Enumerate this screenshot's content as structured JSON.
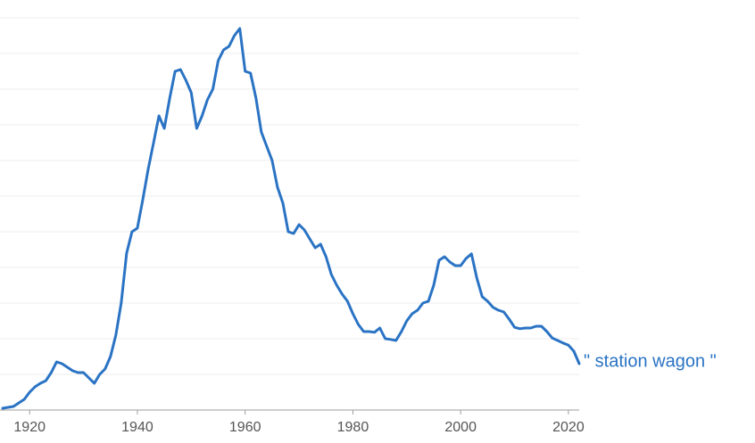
{
  "chart_data": {
    "type": "line",
    "x": [
      1915,
      1917,
      1919,
      1920,
      1921,
      1922,
      1923,
      1924,
      1925,
      1926,
      1927,
      1928,
      1929,
      1930,
      1931,
      1932,
      1933,
      1934,
      1935,
      1936,
      1937,
      1938,
      1939,
      1940,
      1941,
      1942,
      1943,
      1944,
      1945,
      1946,
      1947,
      1948,
      1949,
      1950,
      1951,
      1952,
      1953,
      1954,
      1955,
      1956,
      1957,
      1958,
      1959,
      1960,
      1961,
      1962,
      1963,
      1964,
      1965,
      1966,
      1967,
      1968,
      1969,
      1970,
      1971,
      1972,
      1973,
      1974,
      1975,
      1976,
      1977,
      1978,
      1979,
      1980,
      1981,
      1982,
      1983,
      1984,
      1985,
      1986,
      1987,
      1988,
      1989,
      1990,
      1991,
      1992,
      1993,
      1994,
      1995,
      1996,
      1997,
      1998,
      1999,
      2000,
      2001,
      2002,
      2003,
      2004,
      2005,
      2006,
      2007,
      2008,
      2009,
      2010,
      2011,
      2012,
      2013,
      2014,
      2015,
      2016,
      2017,
      2018,
      2019,
      2020,
      2021,
      2022
    ],
    "series": [
      {
        "name": "\" station wagon \"",
        "color": "#2a73c4",
        "values": [
          0.05,
          0.1,
          0.3,
          0.5,
          0.65,
          0.75,
          0.82,
          1.05,
          1.35,
          1.3,
          1.2,
          1.1,
          1.05,
          1.05,
          0.9,
          0.75,
          1.0,
          1.15,
          1.5,
          2.1,
          3.0,
          4.4,
          5.0,
          5.1,
          5.9,
          6.75,
          7.5,
          8.25,
          7.9,
          8.75,
          9.5,
          9.55,
          9.25,
          8.9,
          7.9,
          8.25,
          8.7,
          9.0,
          9.8,
          10.1,
          10.2,
          10.5,
          10.7,
          9.5,
          9.45,
          8.75,
          7.8,
          7.4,
          7.0,
          6.25,
          5.8,
          5.0,
          4.95,
          5.2,
          5.05,
          4.8,
          4.55,
          4.65,
          4.3,
          3.8,
          3.5,
          3.25,
          3.05,
          2.7,
          2.4,
          2.2,
          2.2,
          2.18,
          2.3,
          2.0,
          1.98,
          1.95,
          2.2,
          2.5,
          2.7,
          2.8,
          3.0,
          3.05,
          3.5,
          4.2,
          4.3,
          4.15,
          4.05,
          4.05,
          4.25,
          4.38,
          3.7,
          3.18,
          3.05,
          2.88,
          2.8,
          2.75,
          2.55,
          2.32,
          2.28,
          2.3,
          2.3,
          2.35,
          2.35,
          2.2,
          2.02,
          1.95,
          1.88,
          1.82,
          1.65,
          1.3
        ]
      }
    ],
    "xlim": [
      1914.5,
      2022
    ],
    "xticks": [
      1920,
      1940,
      1960,
      1980,
      2000,
      2020
    ],
    "ylim": [
      0,
      11.5
    ],
    "ygrid": [
      1,
      2,
      3,
      4,
      5,
      6,
      7,
      8,
      9,
      10,
      11
    ],
    "grid": true
  }
}
